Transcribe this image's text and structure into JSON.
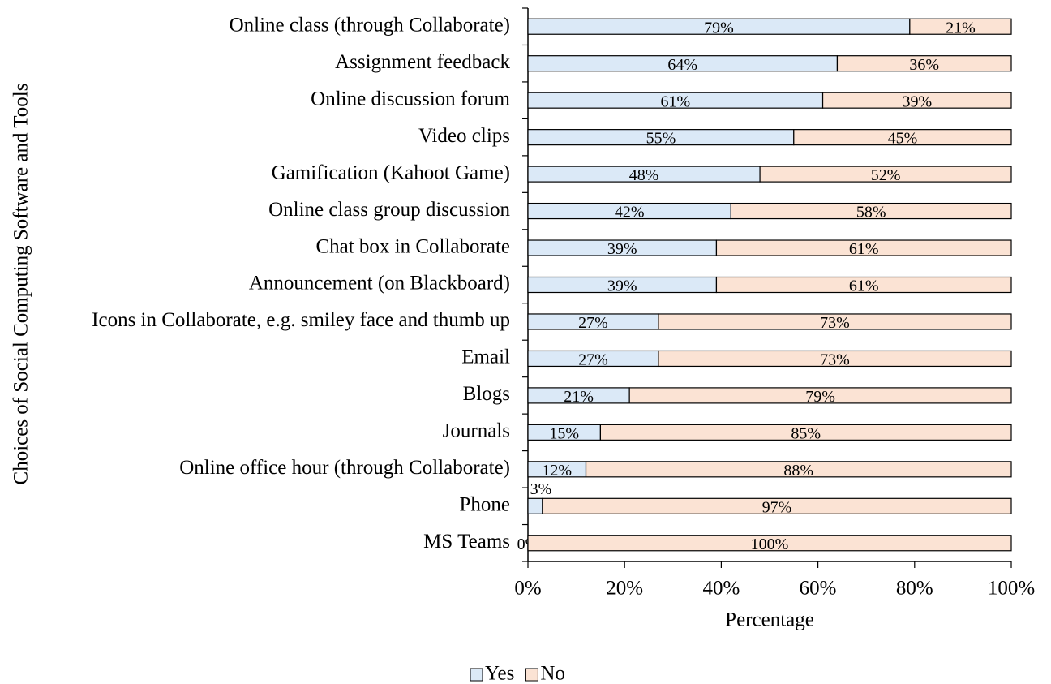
{
  "chart_data": {
    "type": "stacked-bar-horizontal",
    "x_label": "Percentage",
    "y_label": "Choices of Social Computing Software and Tools",
    "categories": [
      "Online class (through Collaborate)",
      "Assignment feedback",
      "Online discussion forum",
      "Video clips",
      "Gamification (Kahoot Game)",
      "Online class group discussion",
      "Chat box in Collaborate",
      "Announcement (on Blackboard)",
      "Icons in Collaborate, e.g. smiley face and thumb up",
      "Email",
      "Blogs",
      "Journals",
      "Online office hour (through Collaborate)",
      "Phone",
      "MS Teams"
    ],
    "series": [
      {
        "name": "Yes",
        "color": "#dbe9f7",
        "values": [
          79,
          64,
          61,
          55,
          48,
          42,
          39,
          39,
          27,
          27,
          21,
          15,
          12,
          3,
          0
        ],
        "value_labels": [
          "79%",
          "64%",
          "61%",
          "55%",
          "48%",
          "42%",
          "39%",
          "39%",
          "27%",
          "27%",
          "21%",
          "15%",
          "12%",
          "3%",
          "0%"
        ]
      },
      {
        "name": "No",
        "color": "#fbe3d4",
        "values": [
          21,
          36,
          39,
          45,
          52,
          58,
          61,
          61,
          73,
          73,
          79,
          85,
          88,
          97,
          100
        ],
        "value_labels": [
          "21%",
          "36%",
          "39%",
          "45%",
          "52%",
          "58%",
          "61%",
          "61%",
          "73%",
          "73%",
          "79%",
          "85%",
          "88%",
          "97%",
          "100%"
        ]
      }
    ],
    "xlim": [
      0,
      100
    ],
    "xticks": [
      {
        "value": 0,
        "label": "0%"
      },
      {
        "value": 20,
        "label": "20%"
      },
      {
        "value": 40,
        "label": "40%"
      },
      {
        "value": 60,
        "label": "60%"
      },
      {
        "value": 80,
        "label": "80%"
      },
      {
        "value": 100,
        "label": "100%"
      }
    ],
    "legend": "bottom"
  }
}
